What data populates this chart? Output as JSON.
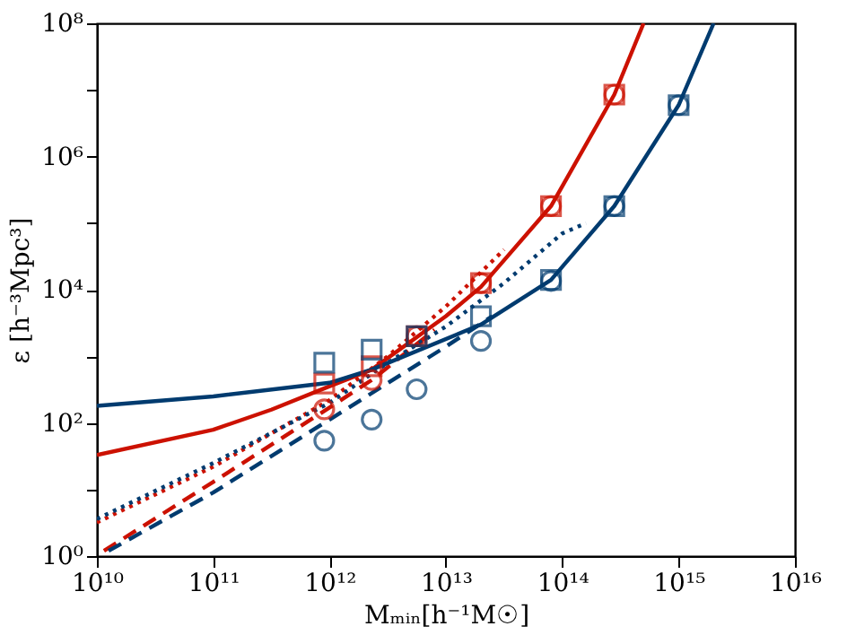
{
  "chart_data": {
    "type": "line",
    "xlabel": "Mₘᵢₙ[h⁻¹M☉]",
    "ylabel": "ε [h⁻³Mpc³]",
    "xlim": [
      10000000000.0,
      1e+16
    ],
    "ylim": [
      1,
      100000000.0
    ],
    "log": "xy",
    "xticks": [
      {
        "value": 10000000000.0,
        "label": "10¹⁰"
      },
      {
        "value": 100000000000.0,
        "label": "10¹¹"
      },
      {
        "value": 1000000000000.0,
        "label": "10¹²"
      },
      {
        "value": 10000000000000.0,
        "label": "10¹³"
      },
      {
        "value": 100000000000000.0,
        "label": "10¹⁴"
      },
      {
        "value": 1000000000000000.0,
        "label": "10¹⁵"
      },
      {
        "value": 1e+16,
        "label": "10¹⁶"
      }
    ],
    "yticks": [
      {
        "value": 1,
        "label": "10⁰"
      },
      {
        "value": 10,
        "label": null
      },
      {
        "value": 100,
        "label": "10²"
      },
      {
        "value": 1000,
        "label": null
      },
      {
        "value": 10000,
        "label": "10⁴"
      },
      {
        "value": 100000,
        "label": null
      },
      {
        "value": 1000000,
        "label": "10⁶"
      },
      {
        "value": 10000000,
        "label": null
      },
      {
        "value": 100000000,
        "label": "10⁸"
      }
    ],
    "series": [
      {
        "line_style": "solid",
        "marker": "none",
        "color": "#cc1100",
        "x": [
          10000000000.0,
          100000000000.0,
          316000000000.0,
          1000000000000.0,
          2300000000000.0,
          10000000000000.0,
          20000000000000.0,
          80000000000000.0,
          280000000000000.0,
          500000000000000.0
        ],
        "values": [
          33,
          79,
          158,
          355,
          630,
          4000,
          11000,
          180000,
          8500000,
          100000000
        ]
      },
      {
        "line_style": "dashed",
        "marker": "none",
        "color": "#cc1100",
        "x": [
          11500000000.0,
          100000000000.0,
          1000000000000.0,
          2300000000000.0,
          8000000000000.0
        ],
        "values": [
          1.2,
          13,
          170,
          440,
          2500
        ]
      },
      {
        "line_style": "dotted",
        "marker": "none",
        "color": "#cc1100",
        "x": [
          10000000000.0,
          100000000000.0,
          1000000000000.0,
          3160000000000.0,
          10000000000000.0,
          31600000000000.0
        ],
        "values": [
          3.2,
          22,
          220,
          1000,
          5600,
          40000
        ]
      },
      {
        "line_style": "solid",
        "marker": "none",
        "color": "#003b6f",
        "x": [
          10000000000.0,
          100000000000.0,
          1000000000000.0,
          2300000000000.0,
          20000000000000.0,
          80000000000000.0,
          280000000000000.0,
          1000000000000000.0,
          2000000000000000.0
        ],
        "values": [
          180,
          250,
          400,
          630,
          3000,
          14000,
          180000,
          5900000,
          100000000
        ]
      },
      {
        "line_style": "dashed",
        "marker": "none",
        "color": "#003b6f",
        "x": [
          12600000000.0,
          100000000000.0,
          1000000000000.0,
          10000000000000.0,
          25000000000000.0
        ],
        "values": [
          1.2,
          9,
          112,
          1400,
          4000
        ]
      },
      {
        "line_style": "dotted",
        "marker": "none",
        "color": "#003b6f",
        "x": [
          10000000000.0,
          100000000000.0,
          1000000000000.0,
          3160000000000.0,
          10000000000000.0,
          31600000000000.0,
          100000000000000.0,
          160000000000000.0
        ],
        "values": [
          3.6,
          25,
          200,
          800,
          2800,
          12600,
          70000,
          100000
        ]
      },
      {
        "type": "scatter",
        "marker": "square",
        "color": "#cc1100",
        "x": [
          900000000000.0,
          2300000000000.0,
          5600000000000.0,
          20000000000000.0,
          80000000000000.0,
          280000000000000.0
        ],
        "values": [
          390,
          710,
          2000,
          12600,
          180000,
          8500000
        ]
      },
      {
        "type": "scatter",
        "marker": "circle",
        "color": "#cc1100",
        "x": [
          900000000000.0,
          2300000000000.0,
          5600000000000.0,
          20000000000000.0,
          80000000000000.0,
          280000000000000.0
        ],
        "values": [
          160,
          440,
          2000,
          12600,
          180000,
          8500000
        ]
      },
      {
        "type": "scatter",
        "marker": "square",
        "color": "#003b6f",
        "x": [
          900000000000.0,
          2300000000000.0,
          5600000000000.0,
          20000000000000.0,
          80000000000000.0,
          280000000000000.0,
          1000000000000000.0
        ],
        "values": [
          800,
          1260,
          2000,
          4000,
          14000,
          180000,
          5900000
        ]
      },
      {
        "type": "scatter",
        "marker": "circle",
        "color": "#003b6f",
        "x": [
          900000000000.0,
          2300000000000.0,
          5600000000000.0,
          20000000000000.0,
          80000000000000.0,
          280000000000000.0,
          1000000000000000.0
        ],
        "values": [
          54,
          112,
          320,
          1700,
          13500,
          180000,
          5900000
        ]
      }
    ]
  }
}
